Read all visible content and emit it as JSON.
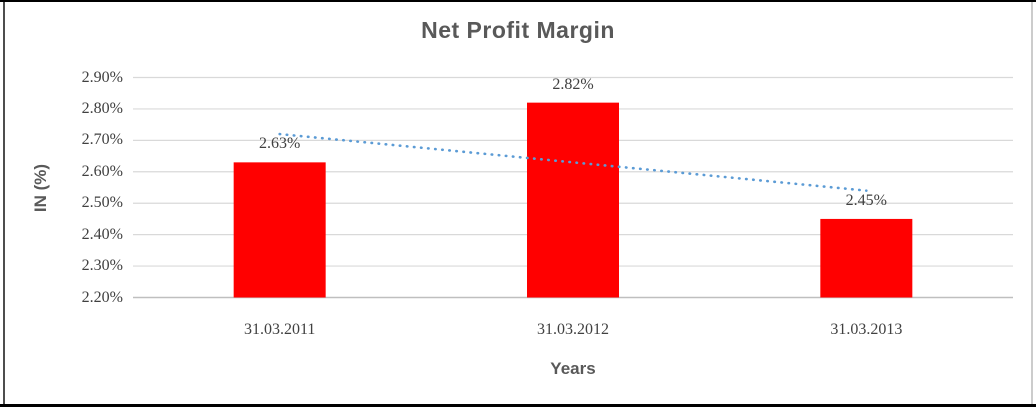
{
  "colors": {
    "bar": "#FF0000",
    "trendline": "#5B9BD5",
    "gridline": "#D9D9D9",
    "axis_line": "#BFBFBF",
    "heading_text": "#595959",
    "label_text": "#404040",
    "frame_dark": "#000000",
    "frame_left": "#4d4d4d",
    "frame_right": "#cccccc"
  },
  "chart_data": {
    "type": "bar",
    "title": "Net Profit Margin",
    "xlabel": "Years",
    "ylabel": "IN (%)",
    "categories": [
      "31.03.2011",
      "31.03.2012",
      "31.03.2013"
    ],
    "values": [
      2.63,
      2.82,
      2.45
    ],
    "data_labels": [
      "2.63%",
      "2.82%",
      "2.45%"
    ],
    "ylim": [
      2.2,
      2.9
    ],
    "ytick_step": 0.1,
    "ytick_labels": [
      "2.90%",
      "2.80%",
      "2.70%",
      "2.60%",
      "2.50%",
      "2.40%",
      "2.30%",
      "2.20%"
    ],
    "ytick_values": [
      2.9,
      2.8,
      2.7,
      2.6,
      2.5,
      2.4,
      2.3,
      2.2
    ],
    "grid": true,
    "legend": "none",
    "bar_color": "#FF0000",
    "trendline": {
      "type": "linear",
      "style": "dotted",
      "color": "#5B9BD5",
      "y_start": 2.72,
      "y_end": 2.54
    }
  }
}
